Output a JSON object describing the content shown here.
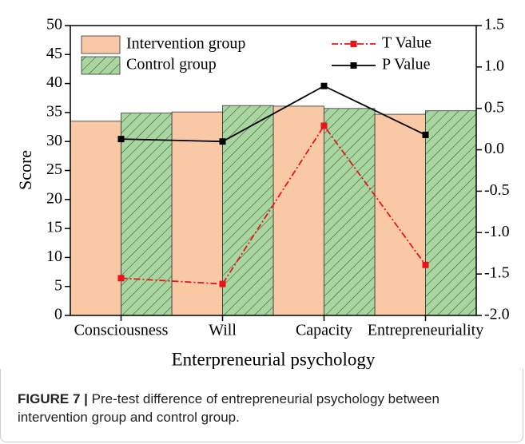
{
  "chart_data": {
    "type": "bar",
    "categories": [
      "Consciousness",
      "Will",
      "Capacity",
      "Entrepreneuriality"
    ],
    "x_label": "Enterpreneurial psychology",
    "y_label": "Score",
    "series": [
      {
        "name": "Intervention group",
        "color": "#f9c9a6",
        "values": [
          33.5,
          35.1,
          36.1,
          34.7
        ]
      },
      {
        "name": "Control group",
        "color": "#a8d5a0",
        "hatch": true,
        "values": [
          34.9,
          36.2,
          35.7,
          35.3
        ]
      },
      {
        "name": "T Value",
        "type": "line",
        "axis": "y2",
        "color": "#e8141a",
        "dash": true,
        "values": [
          -1.55,
          -1.62,
          0.29,
          -1.39
        ]
      },
      {
        "name": "P Value",
        "type": "line",
        "axis": "y2",
        "color": "#000000",
        "values": [
          0.13,
          0.1,
          0.77,
          0.18
        ]
      }
    ],
    "ylim": [
      0,
      50
    ],
    "yticks": [
      0,
      5,
      10,
      15,
      20,
      25,
      30,
      35,
      40,
      45,
      50
    ],
    "y2lim": [
      -2,
      1.5
    ],
    "y2ticks": [
      {
        "value": -2,
        "label": "-2.0"
      },
      -1.5,
      {
        "value": -1,
        "label": "-1.0"
      },
      -0.5,
      {
        "value": 0,
        "label": "0.0"
      },
      0.5,
      {
        "value": 1,
        "label": "1.0"
      },
      1.5
    ],
    "caption": {
      "label": "FIGURE 7 |",
      "text": "Pre-test difference of entrepreneurial psychology between intervention group and control group."
    }
  }
}
